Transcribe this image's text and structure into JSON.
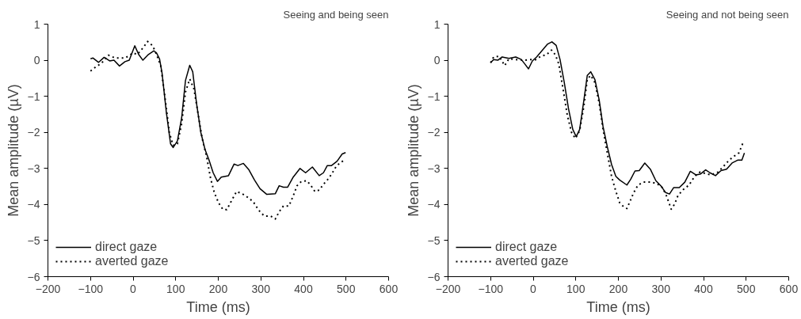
{
  "chart_data": [
    {
      "type": "line",
      "title": "Seeing and being seen",
      "xlabel": "Time (ms)",
      "ylabel": "Mean amplitude (µV)",
      "xlim": [
        -200,
        600
      ],
      "ylim": [
        -6,
        1
      ],
      "xticks": [
        -200,
        -100,
        0,
        100,
        200,
        300,
        400,
        500,
        600
      ],
      "yticks": [
        -6,
        -5,
        -4,
        -3,
        -2,
        -1,
        0,
        1
      ],
      "grid": false,
      "legend": "bottom left",
      "series": [
        {
          "name": "direct gaze",
          "color": "#000000",
          "line_style": "solid",
          "x": [
            -100,
            -94,
            -81,
            -68,
            -55,
            -45,
            -32,
            -19,
            -9,
            4,
            13,
            23,
            36,
            49,
            55,
            62,
            68,
            78,
            88,
            94,
            104,
            114,
            123,
            133,
            140,
            149,
            159,
            169,
            178,
            188,
            198,
            207,
            224,
            237,
            246,
            259,
            272,
            285,
            298,
            314,
            334,
            343,
            353,
            363,
            376,
            392,
            405,
            421,
            437,
            447,
            456,
            466,
            479,
            491,
            499
          ],
          "values": [
            0.04,
            0.06,
            -0.06,
            0.08,
            -0.02,
            0,
            -0.16,
            -0.04,
            0,
            0.4,
            0.16,
            0,
            0.16,
            0.26,
            0.2,
            0.04,
            -0.36,
            -1.44,
            -2.32,
            -2.42,
            -2.24,
            -1.6,
            -0.56,
            -0.14,
            -0.32,
            -1.2,
            -2,
            -2.48,
            -2.76,
            -3.12,
            -3.36,
            -3.24,
            -3.2,
            -2.88,
            -2.92,
            -2.86,
            -3.04,
            -3.32,
            -3.56,
            -3.72,
            -3.7,
            -3.48,
            -3.52,
            -3.52,
            -3.24,
            -3.0,
            -3.12,
            -2.96,
            -3.2,
            -3.12,
            -2.92,
            -2.92,
            -2.8,
            -2.6,
            -2.56
          ]
        },
        {
          "name": "averted gaze",
          "color": "#000000",
          "line_style": "dotted",
          "x": [
            -100,
            -87,
            -74,
            -58,
            -42,
            -19,
            0,
            10,
            23,
            34,
            46,
            55,
            65,
            75,
            85,
            94,
            104,
            114,
            123,
            133,
            143,
            153,
            162,
            172,
            182,
            191,
            201,
            211,
            220,
            230,
            243,
            256,
            269,
            282,
            295,
            308,
            323,
            334,
            343,
            353,
            366,
            376,
            385,
            395,
            408,
            418,
            427,
            437,
            447,
            456,
            466,
            476,
            486,
            495
          ],
          "values": [
            -0.3,
            -0.18,
            -0.08,
            0.14,
            0.06,
            0.06,
            0.2,
            0.16,
            0.34,
            0.52,
            0.4,
            0.16,
            -0.16,
            -1.04,
            -2,
            -2.36,
            -2.32,
            -1.76,
            -0.88,
            -0.52,
            -0.8,
            -1.52,
            -2.16,
            -2.64,
            -3.28,
            -3.68,
            -3.96,
            -4.14,
            -4.14,
            -3.92,
            -3.64,
            -3.7,
            -3.8,
            -3.92,
            -4.16,
            -4.32,
            -4.32,
            -4.4,
            -4.2,
            -4.04,
            -4.04,
            -3.76,
            -3.48,
            -3.36,
            -3.34,
            -3.48,
            -3.64,
            -3.6,
            -3.44,
            -3.32,
            -3.16,
            -2.96,
            -2.84,
            -2.78
          ]
        }
      ]
    },
    {
      "type": "line",
      "title": "Seeing and not being seen",
      "xlabel": "Time (ms)",
      "ylabel": "Mean amplitude (µV)",
      "xlim": [
        -200,
        600
      ],
      "ylim": [
        -6,
        1
      ],
      "xticks": [
        -200,
        -100,
        0,
        100,
        200,
        300,
        400,
        500,
        600
      ],
      "yticks": [
        -6,
        -5,
        -4,
        -3,
        -2,
        -1,
        0,
        1
      ],
      "grid": false,
      "legend": "bottom left",
      "series": [
        {
          "name": "direct gaze",
          "color": "#000000",
          "line_style": "solid",
          "x": [
            -100,
            -93,
            -83,
            -73,
            -57,
            -41,
            -28,
            -20,
            -11,
            -2,
            8,
            21,
            34,
            44,
            54,
            63,
            73,
            83,
            93,
            101,
            109,
            119,
            127,
            135,
            145,
            155,
            164,
            174,
            184,
            194,
            203,
            220,
            229,
            239,
            249,
            262,
            275,
            288,
            301,
            311,
            320,
            330,
            343,
            356,
            369,
            382,
            392,
            405,
            415,
            428,
            441,
            454,
            467,
            480,
            490,
            496
          ],
          "values": [
            -0.07,
            0.02,
            0,
            0.09,
            0.05,
            0.09,
            0.02,
            -0.1,
            -0.24,
            -0.02,
            0.09,
            0.27,
            0.45,
            0.51,
            0.41,
            0.02,
            -0.62,
            -1.35,
            -1.92,
            -2.12,
            -1.92,
            -1.11,
            -0.42,
            -0.32,
            -0.54,
            -1.11,
            -1.84,
            -2.4,
            -2.89,
            -3.22,
            -3.32,
            -3.46,
            -3.3,
            -3.07,
            -3.06,
            -2.85,
            -3.02,
            -3.34,
            -3.5,
            -3.67,
            -3.71,
            -3.53,
            -3.53,
            -3.38,
            -3.08,
            -3.18,
            -3.16,
            -3.04,
            -3.12,
            -3.2,
            -3.06,
            -3.02,
            -2.85,
            -2.77,
            -2.77,
            -2.57
          ]
        },
        {
          "name": "averted gaze",
          "color": "#000000",
          "line_style": "dotted",
          "x": [
            -100,
            -93,
            -80,
            -67,
            -57,
            -44,
            -21,
            -5,
            5,
            18,
            31,
            43,
            52,
            60,
            70,
            80,
            90,
            99,
            109,
            119,
            127,
            135,
            145,
            155,
            164,
            174,
            184,
            194,
            203,
            213,
            220,
            226,
            236,
            246,
            259,
            275,
            291,
            304,
            314,
            324,
            332,
            340,
            353,
            366,
            379,
            392,
            405,
            418,
            434,
            447,
            460,
            473,
            483,
            494
          ],
          "values": [
            -0.07,
            0.09,
            0.11,
            -0.15,
            0.04,
            0.02,
            0,
            0.02,
            0.01,
            0.11,
            0.15,
            0.28,
            0.15,
            -0.1,
            -0.79,
            -1.52,
            -2,
            -2.17,
            -1.96,
            -1.27,
            -0.53,
            -0.42,
            -0.62,
            -1.19,
            -1.92,
            -2.57,
            -3.22,
            -3.63,
            -3.95,
            -4.07,
            -4.11,
            -3.95,
            -3.67,
            -3.46,
            -3.38,
            -3.38,
            -3.42,
            -3.54,
            -3.79,
            -4.13,
            -3.99,
            -3.75,
            -3.58,
            -3.46,
            -3.22,
            -3.1,
            -3.14,
            -3.18,
            -3.1,
            -2.94,
            -2.77,
            -2.65,
            -2.57,
            -2.25
          ]
        }
      ]
    }
  ]
}
